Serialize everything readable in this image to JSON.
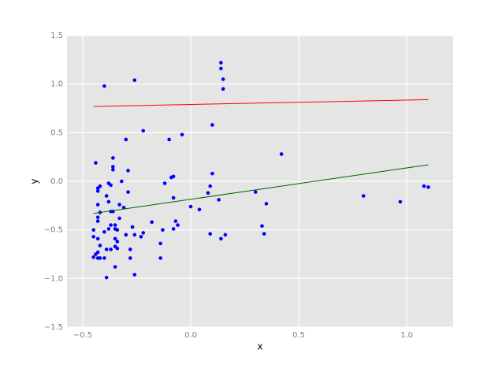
{
  "chart_data": {
    "type": "scatter",
    "x_label": "x",
    "y_label": "y",
    "xlim": [
      -0.573,
      1.215
    ],
    "ylim": [
      -1.5,
      1.5
    ],
    "xticks": [
      {
        "value": -0.5,
        "label": "−0.5"
      },
      {
        "value": 0,
        "label": "0.0"
      },
      {
        "value": 0.5,
        "label": "0.5"
      },
      {
        "value": 1,
        "label": "1.0"
      }
    ],
    "yticks": [
      {
        "value": -1.5,
        "label": "−1.5"
      },
      {
        "value": -1,
        "label": "−1.0"
      },
      {
        "value": -0.5,
        "label": "−0.5"
      },
      {
        "value": 0,
        "label": "0.0"
      },
      {
        "value": 0.5,
        "label": "0.5"
      },
      {
        "value": 1,
        "label": "1.0"
      },
      {
        "value": 1.5,
        "label": "1.5"
      }
    ],
    "grid": true,
    "points": {
      "color": "#0000ff",
      "x": [
        -0.4,
        -0.26,
        0.14,
        0.14,
        0.15,
        0.15,
        0.1,
        -0.22,
        -0.04,
        -0.1,
        -0.3,
        0.42,
        -0.36,
        -0.44,
        -0.36,
        -0.36,
        -0.29,
        0.1,
        -0.08,
        -0.09,
        -0.38,
        -0.32,
        -0.37,
        -0.42,
        -0.43,
        -0.43,
        -0.12,
        0.09,
        -0.29,
        0.08,
        0.3,
        0.8,
        1.08,
        1.1,
        0.97,
        0.35,
        0.13,
        -0.08,
        -0.39,
        -0.38,
        -0.43,
        -0.33,
        -0.31,
        -0.36,
        -0.37,
        -0.42,
        0.0,
        0.04,
        -0.43,
        -0.33,
        -0.43,
        -0.18,
        -0.06,
        -0.07,
        -0.37,
        -0.35,
        -0.27,
        0.33,
        -0.45,
        -0.38,
        -0.35,
        -0.34,
        -0.4,
        -0.22,
        -0.13,
        -0.08,
        0.09,
        0.16,
        0.34,
        -0.26,
        -0.23,
        -0.3,
        0.14,
        -0.45,
        -0.43,
        -0.35,
        -0.34,
        -0.14,
        -0.42,
        -0.35,
        -0.39,
        -0.28,
        -0.37,
        -0.43,
        -0.34,
        -0.44,
        -0.45,
        -0.42,
        -0.4,
        -0.28,
        -0.14,
        -0.43,
        -0.35,
        -0.39,
        -0.26
      ],
      "values": [
        0.98,
        1.04,
        1.22,
        1.16,
        1.05,
        0.95,
        0.58,
        0.52,
        0.48,
        0.43,
        0.43,
        0.28,
        0.24,
        0.19,
        0.15,
        0.12,
        0.11,
        0.08,
        0.05,
        0.04,
        -0.02,
        0.0,
        -0.04,
        -0.05,
        -0.07,
        -0.1,
        -0.02,
        -0.05,
        -0.11,
        -0.12,
        -0.11,
        -0.15,
        -0.05,
        -0.06,
        -0.21,
        -0.23,
        -0.19,
        -0.17,
        -0.15,
        -0.21,
        -0.24,
        -0.24,
        -0.27,
        -0.31,
        -0.31,
        -0.32,
        -0.26,
        -0.29,
        -0.37,
        -0.38,
        -0.41,
        -0.42,
        -0.45,
        -0.41,
        -0.45,
        -0.45,
        -0.47,
        -0.46,
        -0.5,
        -0.49,
        -0.49,
        -0.5,
        -0.52,
        -0.53,
        -0.5,
        -0.49,
        -0.54,
        -0.55,
        -0.54,
        -0.55,
        -0.57,
        -0.55,
        -0.59,
        -0.57,
        -0.59,
        -0.59,
        -0.62,
        -0.64,
        -0.66,
        -0.67,
        -0.7,
        -0.7,
        -0.7,
        -0.73,
        -0.69,
        -0.75,
        -0.78,
        -0.79,
        -0.79,
        -0.79,
        -0.79,
        -0.79,
        -0.88,
        -0.99,
        -0.96
      ]
    },
    "series": [
      {
        "color": "#ff0000",
        "x": [
          -0.45,
          1.1
        ],
        "values": [
          0.77,
          0.84
        ]
      },
      {
        "color": "#006400",
        "x": [
          -0.45,
          1.1
        ],
        "values": [
          -0.33,
          0.17
        ]
      }
    ]
  }
}
